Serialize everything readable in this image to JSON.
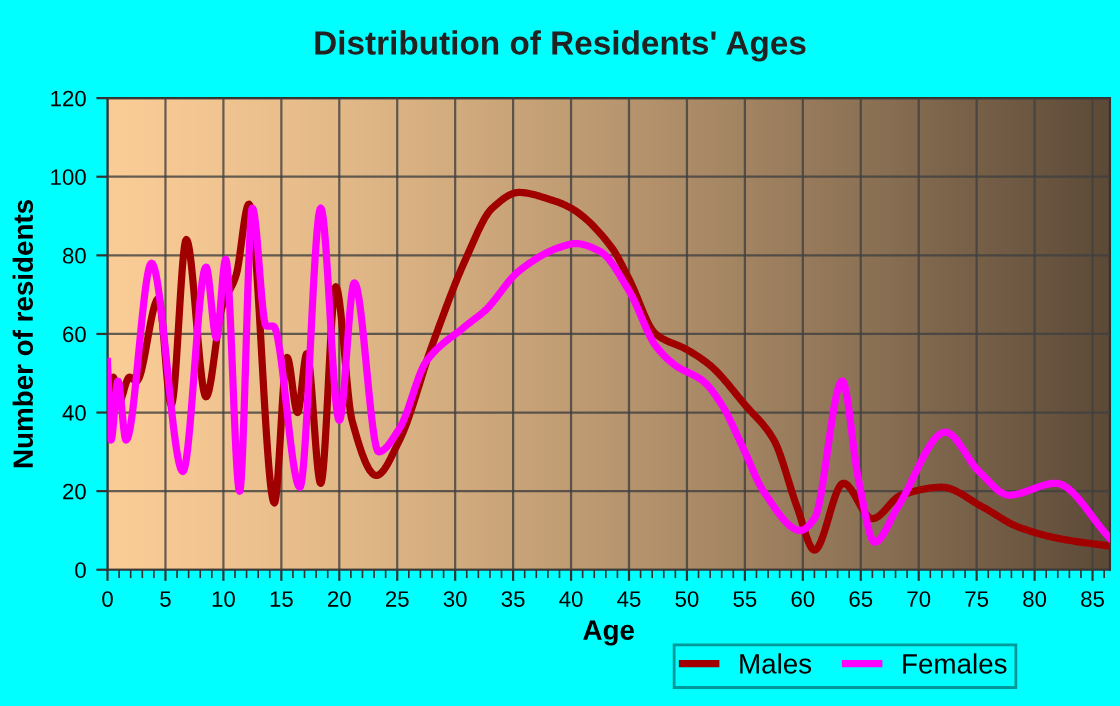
{
  "chart_data": {
    "type": "line",
    "title": "Distribution of Residents' Ages",
    "xlabel": "Age",
    "ylabel": "Number of residents",
    "xlim": [
      0,
      86.5
    ],
    "xticks": [
      0,
      5,
      10,
      15,
      20,
      25,
      30,
      35,
      40,
      45,
      50,
      55,
      60,
      65,
      70,
      75,
      80,
      85
    ],
    "ylim": [
      0,
      120
    ],
    "yticks": [
      0,
      20,
      40,
      60,
      80,
      100,
      120
    ],
    "grid": true,
    "legend": "bottom right",
    "marker": "none",
    "line_style": "solid",
    "series": [
      {
        "name": "Males",
        "color": "#a00000",
        "x": [
          0,
          0.5,
          0.9,
          1.9,
          2.5,
          4.4,
          5.5,
          6.8,
          8.5,
          9.9,
          11.1,
          12.2,
          14.4,
          15.5,
          16.4,
          17.2,
          18.4,
          19.7,
          21.1,
          23.2,
          25.2,
          28,
          30.9,
          33.2,
          35.5,
          38.4,
          40,
          43.5,
          45,
          47.3,
          50,
          52,
          55,
          57.5,
          59.5,
          61,
          63.5,
          66,
          68.5,
          72,
          75.5,
          78.5,
          82,
          86.5
        ],
        "values": [
          38,
          49,
          42,
          49,
          48,
          69,
          42,
          84,
          44,
          67,
          75,
          93,
          17,
          54,
          40,
          55,
          22,
          72,
          38,
          24,
          33,
          57,
          79,
          92,
          96,
          94,
          92,
          82,
          74,
          60,
          56,
          52,
          42,
          33,
          16,
          5,
          22,
          13,
          19,
          21,
          16,
          11,
          8,
          6
        ]
      },
      {
        "name": "Females",
        "color": "#ff00ff",
        "x": [
          0,
          0.3,
          0.9,
          1.6,
          3.8,
          6.5,
          8.5,
          9.4,
          10.2,
          11.4,
          12.5,
          13.7,
          14.3,
          16.6,
          18.4,
          20,
          21.3,
          23.4,
          25.2,
          27.5,
          30.9,
          32.6,
          35.5,
          39,
          40.4,
          42.5,
          45,
          47.3,
          49,
          51.4,
          53,
          55,
          56.6,
          59.8,
          61,
          63.4,
          64.8,
          66.2,
          68.2,
          72.3,
          75.2,
          77.8,
          81.8,
          86.5
        ],
        "values": [
          53,
          33,
          48,
          33,
          78,
          25,
          77,
          59,
          79,
          20,
          92,
          62,
          62,
          21,
          92,
          38,
          73,
          30,
          36,
          53,
          62,
          66,
          76,
          82,
          83,
          81,
          71,
          57,
          52,
          48,
          42,
          30,
          20,
          10,
          13,
          48,
          23,
          7,
          16,
          35,
          25,
          19,
          22,
          8
        ]
      }
    ]
  }
}
